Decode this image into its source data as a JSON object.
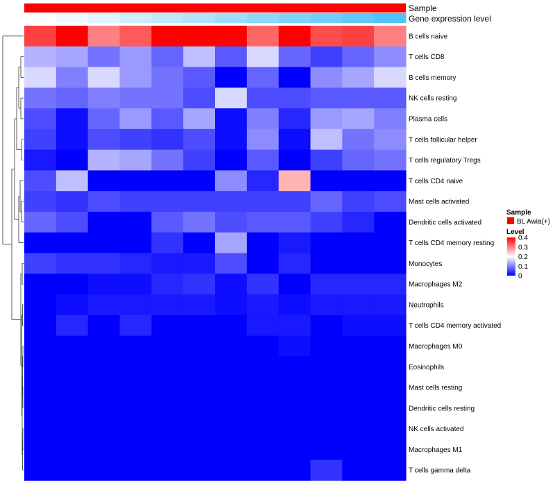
{
  "chart_data": {
    "type": "heatmap",
    "title": "",
    "annotations": [
      {
        "name": "Sample",
        "label": "Sample"
      },
      {
        "name": "Gene expression level",
        "label": "Gene expression level",
        "values": [
          0.0,
          0.09,
          0.18,
          0.27,
          0.36,
          0.45,
          0.55,
          0.64,
          0.73,
          0.82,
          0.91,
          1.0
        ]
      }
    ],
    "rows": [
      "B cells naive",
      "T cells CD8",
      "B cells memory",
      "NK cells resting",
      "Plasma cells",
      "T cells follicular helper",
      "T cells regulatory  Tregs",
      "T cells CD4 naive",
      "Mast cells activated",
      "Dendritic cells activated",
      "T cells CD4 memory resting",
      "Monocytes",
      "Macrophages M2",
      "Neutrophils",
      "T cells CD4 memory activated",
      "Macrophages M0",
      "Eosinophils",
      "Mast cells resting",
      "Dendritic cells resting",
      "NK cells activated",
      "Macrophages M1",
      "T cells gamma delta"
    ],
    "n_columns": 12,
    "values": [
      [
        0.35,
        0.42,
        0.3,
        0.33,
        0.42,
        0.4,
        0.42,
        0.32,
        0.4,
        0.34,
        0.35,
        0.3
      ],
      [
        0.14,
        0.13,
        0.09,
        0.12,
        0.08,
        0.15,
        0.07,
        0.17,
        0.08,
        0.05,
        0.08,
        0.11
      ],
      [
        0.17,
        0.1,
        0.17,
        0.12,
        0.09,
        0.07,
        0.0,
        0.08,
        0.0,
        0.11,
        0.13,
        0.17
      ],
      [
        0.09,
        0.08,
        0.1,
        0.09,
        0.09,
        0.06,
        0.17,
        0.06,
        0.06,
        0.07,
        0.07,
        0.07
      ],
      [
        0.06,
        0.01,
        0.08,
        0.12,
        0.07,
        0.13,
        0.01,
        0.1,
        0.03,
        0.12,
        0.13,
        0.1
      ],
      [
        0.05,
        0.01,
        0.06,
        0.05,
        0.04,
        0.06,
        0.01,
        0.11,
        0.01,
        0.15,
        0.09,
        0.11
      ],
      [
        0.02,
        0.0,
        0.14,
        0.13,
        0.09,
        0.05,
        0.0,
        0.07,
        0.0,
        0.05,
        0.08,
        0.09
      ],
      [
        0.06,
        0.15,
        0.0,
        0.0,
        0.0,
        0.0,
        0.11,
        0.03,
        0.26,
        0.0,
        0.0,
        0.0
      ],
      [
        0.05,
        0.04,
        0.06,
        0.05,
        0.05,
        0.05,
        0.05,
        0.05,
        0.05,
        0.08,
        0.05,
        0.06
      ],
      [
        0.08,
        0.06,
        0.0,
        0.0,
        0.07,
        0.09,
        0.06,
        0.07,
        0.07,
        0.05,
        0.03,
        0.0
      ],
      [
        0.0,
        0.0,
        0.0,
        0.0,
        0.04,
        0.0,
        0.13,
        0.0,
        0.02,
        0.0,
        0.0,
        0.0
      ],
      [
        0.05,
        0.04,
        0.04,
        0.03,
        0.02,
        0.02,
        0.06,
        0.0,
        0.03,
        0.0,
        0.0,
        0.0
      ],
      [
        0.0,
        0.0,
        0.01,
        0.01,
        0.03,
        0.04,
        0.01,
        0.04,
        0.0,
        0.03,
        0.03,
        0.03
      ],
      [
        0.0,
        0.01,
        0.02,
        0.02,
        0.02,
        0.02,
        0.01,
        0.02,
        0.01,
        0.02,
        0.02,
        0.02
      ],
      [
        0.0,
        0.03,
        0.0,
        0.03,
        0.0,
        0.0,
        0.0,
        0.02,
        0.02,
        0.0,
        0.01,
        0.01
      ],
      [
        0.0,
        0.0,
        0.0,
        0.0,
        0.0,
        0.0,
        0.0,
        0.0,
        0.01,
        0.0,
        0.0,
        0.0
      ],
      [
        0.0,
        0.0,
        0.0,
        0.0,
        0.0,
        0.0,
        0.0,
        0.0,
        0.0,
        0.0,
        0.0,
        0.0
      ],
      [
        0.0,
        0.0,
        0.0,
        0.0,
        0.0,
        0.0,
        0.0,
        0.0,
        0.0,
        0.0,
        0.0,
        0.0
      ],
      [
        0.0,
        0.0,
        0.0,
        0.0,
        0.0,
        0.0,
        0.0,
        0.0,
        0.0,
        0.0,
        0.0,
        0.0
      ],
      [
        0.0,
        0.0,
        0.0,
        0.0,
        0.0,
        0.0,
        0.0,
        0.0,
        0.0,
        0.0,
        0.0,
        0.0
      ],
      [
        0.0,
        0.0,
        0.0,
        0.0,
        0.0,
        0.0,
        0.0,
        0.0,
        0.0,
        0.0,
        0.0,
        0.0
      ],
      [
        0.0,
        0.0,
        0.0,
        0.0,
        0.0,
        0.0,
        0.0,
        0.0,
        0.0,
        0.04,
        0.0,
        0.0
      ]
    ],
    "color_scale": {
      "low": "#0000ff",
      "mid": "#ffffff",
      "high": "#ff0000",
      "min": 0,
      "mid_value": 0.2,
      "max": 0.4
    },
    "legend": {
      "sample_title": "Sample",
      "sample_entry": "BL Awia(+)",
      "sample_color": "#ff0000",
      "level_title": "Level",
      "level_ticks": [
        "0.4",
        "0.3",
        "0.2",
        "0.1",
        "0"
      ],
      "level_tick_values": [
        0.4,
        0.3,
        0.2,
        0.1,
        0
      ]
    },
    "annotation_colors": {
      "gene_low": "#ffffff",
      "gene_high": "#4fc3f7"
    },
    "row_dendrogram": true
  }
}
